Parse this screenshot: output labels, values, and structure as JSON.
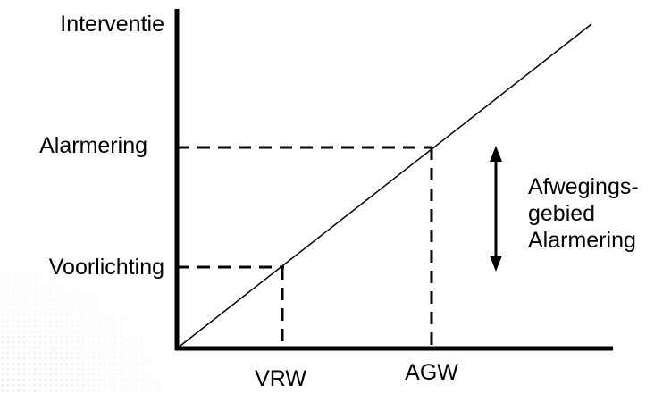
{
  "diagram": {
    "y_axis_label": "Interventie",
    "y_levels": [
      "Alarmering",
      "Voorlichting"
    ],
    "x_markers": [
      "VRW",
      "AGW"
    ],
    "annotation": {
      "line1": "Afwegings-",
      "line2": "gebied",
      "line3": "Alarmering"
    }
  },
  "colors": {
    "stroke": "#000000",
    "background": "#ffffff"
  }
}
